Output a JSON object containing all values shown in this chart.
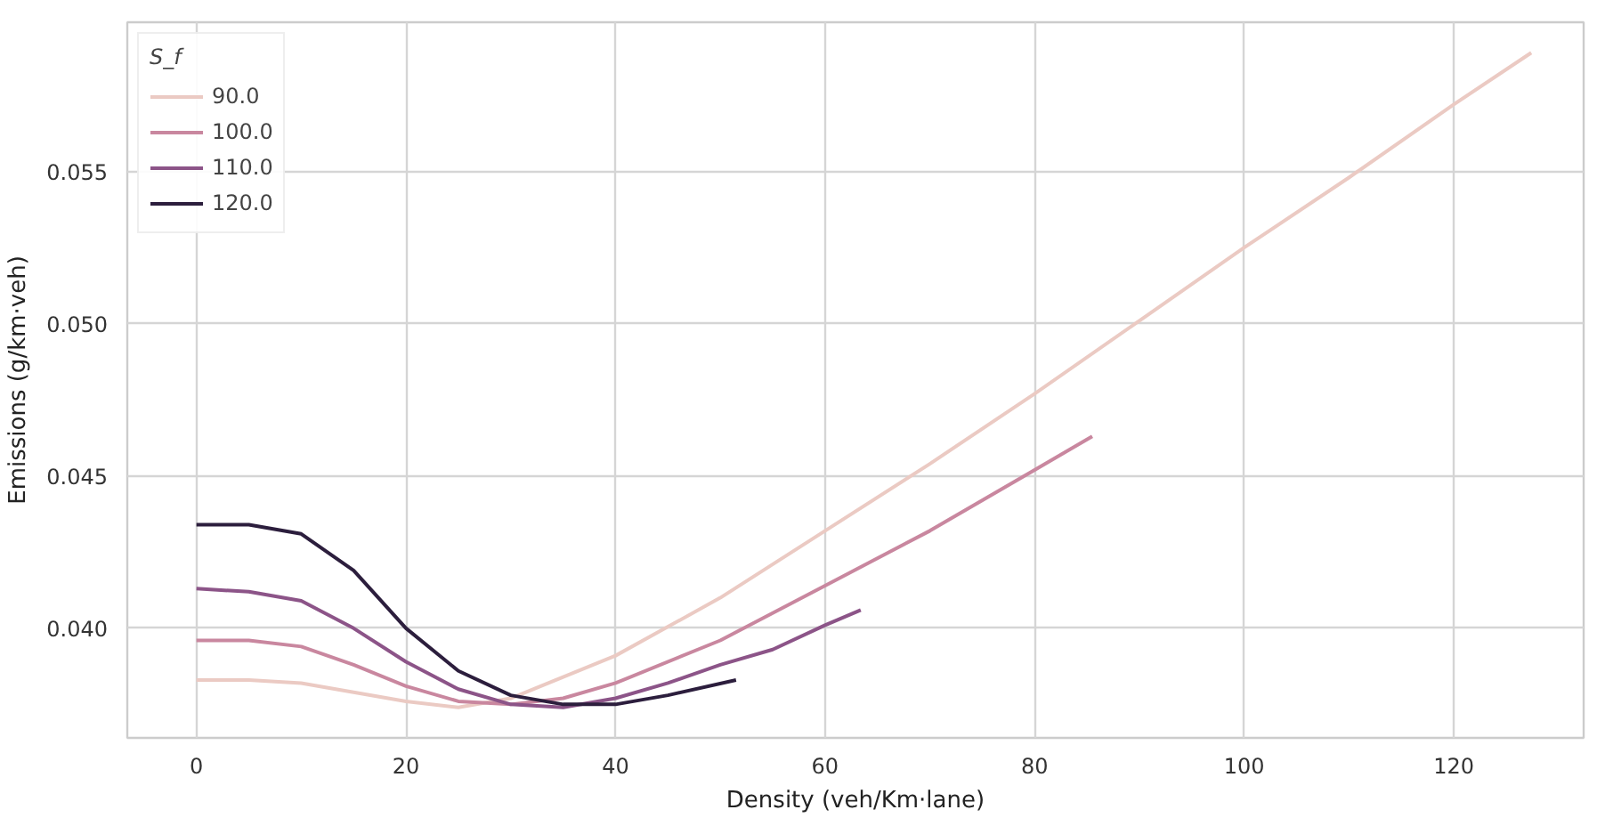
{
  "chart_data": {
    "type": "line",
    "xlabel": "Density (veh/Km·lane)",
    "ylabel": "Emissions (g/km·veh)",
    "legend_title": "S_f",
    "legend": "top left",
    "grid": true,
    "xlim": [
      -6.6,
      132.4
    ],
    "xticks": [
      0,
      20,
      40,
      60,
      80,
      100,
      120
    ],
    "ylim": [
      0.0364,
      0.0599
    ],
    "yticks": [
      {
        "value": 0.04,
        "label": "0.040"
      },
      {
        "value": 0.045,
        "label": "0.045"
      },
      {
        "value": 0.05,
        "label": "0.050"
      },
      {
        "value": 0.055,
        "label": "0.055"
      }
    ],
    "series": [
      {
        "name": "90.0",
        "color": "#ebcac3",
        "x": [
          0,
          5,
          10,
          15,
          20,
          25,
          30,
          35,
          40,
          50,
          60,
          70,
          80,
          90,
          100,
          110,
          120,
          127.4
        ],
        "values": [
          0.0383,
          0.0383,
          0.0382,
          0.0379,
          0.0376,
          0.0374,
          0.0377,
          0.0384,
          0.0391,
          0.041,
          0.0432,
          0.0454,
          0.0477,
          0.0501,
          0.0525,
          0.0548,
          0.0572,
          0.0589
        ]
      },
      {
        "name": "100.0",
        "color": "#c9879f",
        "x": [
          0,
          5,
          10,
          15,
          20,
          25,
          30,
          35,
          40,
          50,
          60,
          70,
          80,
          85.5
        ],
        "values": [
          0.0396,
          0.0396,
          0.0394,
          0.0388,
          0.0381,
          0.0376,
          0.0375,
          0.0377,
          0.0382,
          0.0396,
          0.0414,
          0.0432,
          0.0452,
          0.0463
        ]
      },
      {
        "name": "110.0",
        "color": "#8c5488",
        "x": [
          0,
          5,
          10,
          15,
          20,
          25,
          30,
          35,
          40,
          45,
          50,
          55,
          60,
          63.4
        ],
        "values": [
          0.0413,
          0.0412,
          0.0409,
          0.04,
          0.0389,
          0.038,
          0.0375,
          0.0374,
          0.0377,
          0.0382,
          0.0388,
          0.0393,
          0.0401,
          0.0406
        ]
      },
      {
        "name": "120.0",
        "color": "#2c1e3d",
        "x": [
          0,
          5,
          10,
          15,
          20,
          25,
          30,
          35,
          40,
          45,
          51.5
        ],
        "values": [
          0.0434,
          0.0434,
          0.0431,
          0.0419,
          0.04,
          0.0386,
          0.0378,
          0.0375,
          0.0375,
          0.0378,
          0.0383
        ]
      }
    ]
  }
}
